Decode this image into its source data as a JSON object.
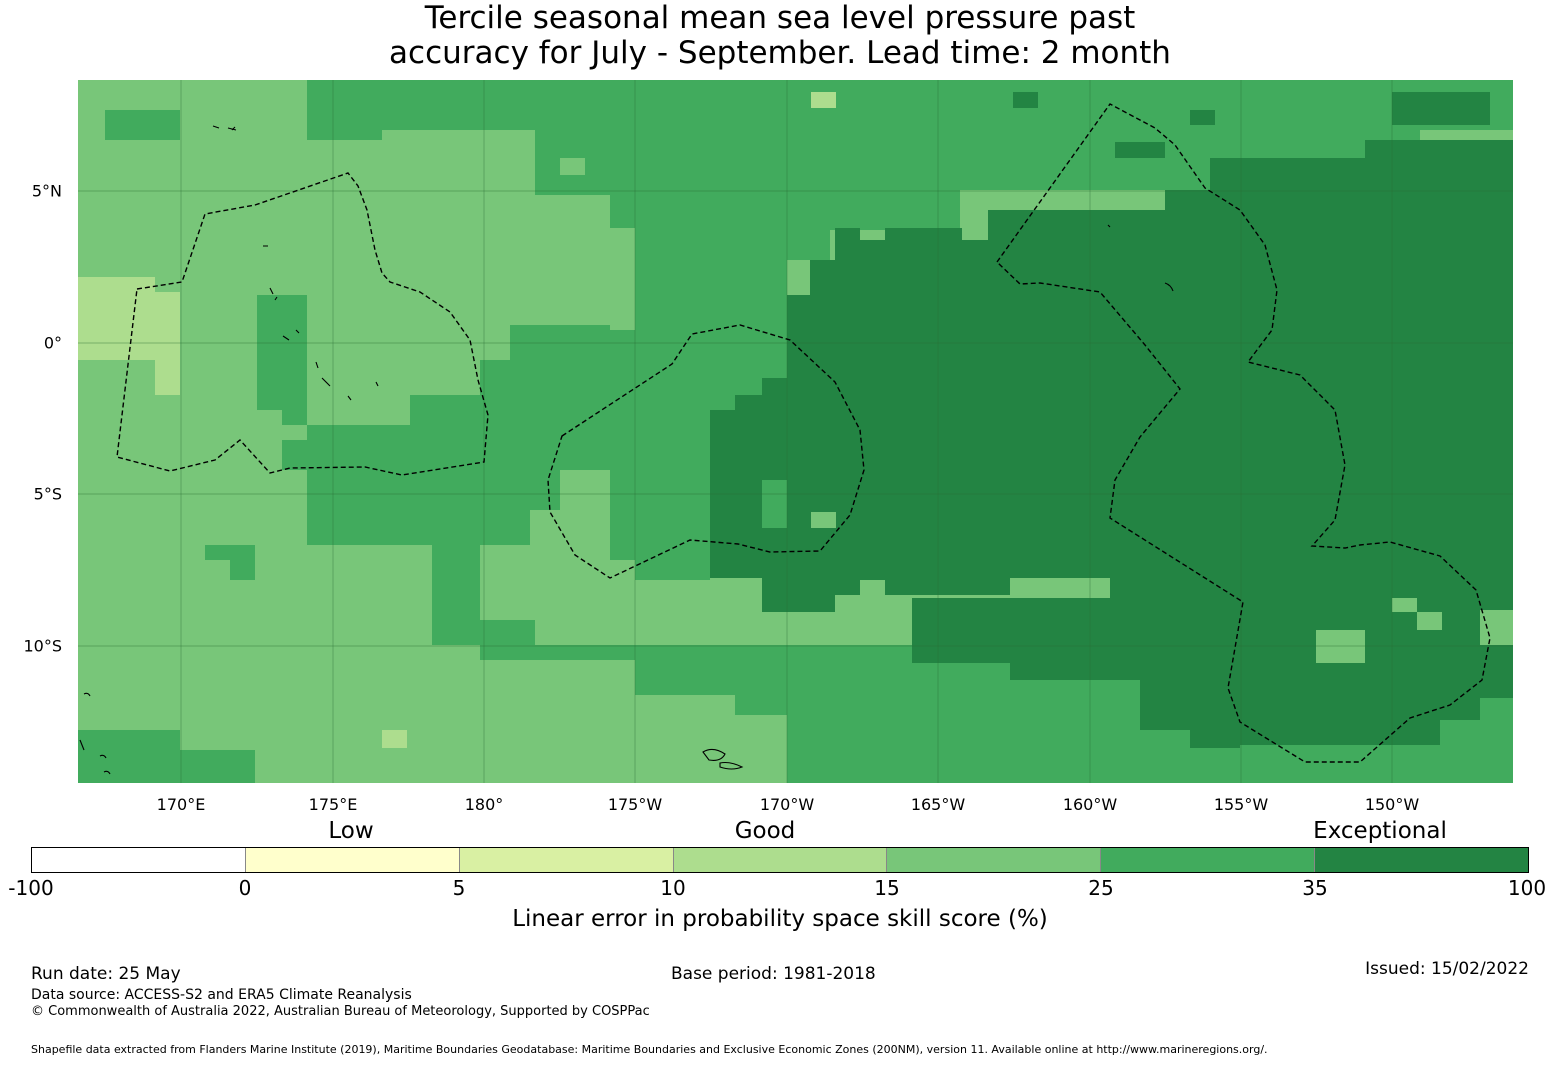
{
  "title": {
    "line1": "Tercile seasonal mean sea level pressure past",
    "line2": "accuracy for July - September. Lead time: 2 month"
  },
  "map": {
    "lon_labels": [
      "170°E",
      "175°E",
      "180°",
      "175°W",
      "170°W",
      "165°W",
      "160°W",
      "155°W",
      "150°W"
    ],
    "lat_labels": [
      "5°N",
      "0°",
      "5°S",
      "10°S"
    ],
    "gridlines": true,
    "ocean_color": "#78c679"
  },
  "legend": {
    "categories": [
      "Low",
      "Good",
      "Exceptional"
    ],
    "ticks": [
      "-100",
      "0",
      "5",
      "10",
      "15",
      "25",
      "35",
      "100"
    ],
    "colors": [
      "#ffffff",
      "#ffffcc",
      "#d9f0a3",
      "#addd8e",
      "#78c679",
      "#41ab5d",
      "#238443"
    ],
    "title": "Linear error in probability space skill score (%)"
  },
  "footer": {
    "run_date": "Run date: 25 May",
    "base_period": "Base period: 1981-2018",
    "issued": "Issued: 15/02/2022",
    "data_source": "Data source: ACCESS-S2 and ERA5 Climate Reanalysis",
    "copyright": "© Commonwealth of Australia 2022, Australian Bureau of Meteorology, Supported by COSPPac",
    "shapefile": "Shapefile data extracted from Flanders Marine Institute (2019), Maritime Boundaries Geodatabase: Maritime Boundaries and Exclusive Economic Zones (200NM), version 11. Available online at http://www.marineregions.org/."
  }
}
